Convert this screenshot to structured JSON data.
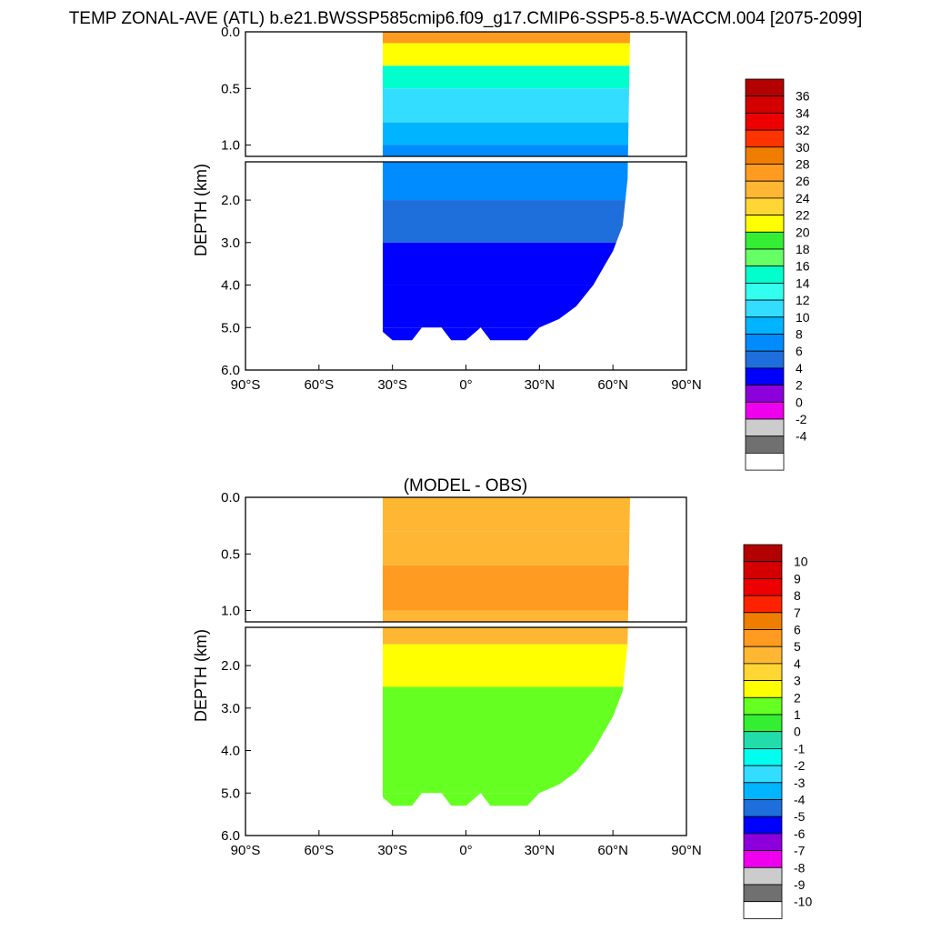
{
  "title": "TEMP ZONAL-AVE (ATL) b.e21.BWSSP585cmip6.f09_g17.CMIP6-SSP5-8.5-WACCM.004 [2075-2099]",
  "panel2_title": "(MODEL - OBS)",
  "chart_data": [
    {
      "type": "heatmap",
      "variable": "TEMP zonal average (Atlantic)",
      "ylabel": "DEPTH (km)",
      "xlabel": "",
      "x_ticks": [
        "90°S",
        "60°S",
        "30°S",
        "0°",
        "30°N",
        "60°N",
        "90°N"
      ],
      "x_tick_values": [
        -90,
        -60,
        -30,
        0,
        30,
        60,
        90
      ],
      "y_ticks_upper": [
        "0.0",
        "0.5",
        "1.0"
      ],
      "y_ticks_upper_values": [
        0.0,
        0.5,
        1.0
      ],
      "y_ticks_lower": [
        "2.0",
        "3.0",
        "4.0",
        "5.0",
        "6.0"
      ],
      "y_ticks_lower_values": [
        2.0,
        3.0,
        4.0,
        5.0,
        6.0
      ],
      "xlim": [
        -90,
        90
      ],
      "ylim_upper": [
        0.0,
        1.1
      ],
      "ylim_lower": [
        1.1,
        6.0
      ],
      "ocean_lat_range": [
        -34,
        67
      ],
      "colorbar": {
        "labels": [
          "36",
          "34",
          "32",
          "30",
          "28",
          "26",
          "24",
          "22",
          "20",
          "18",
          "16",
          "14",
          "12",
          "10",
          "8",
          "6",
          "4",
          "2",
          "0",
          "-2",
          "-4"
        ],
        "colors": [
          "#b30000",
          "#d40000",
          "#ee0000",
          "#ff3300",
          "#ee7d00",
          "#ff9b20",
          "#ffb733",
          "#ffd633",
          "#ffff00",
          "#33ee33",
          "#66ff66",
          "#00ffcc",
          "#33ffee",
          "#33ddff",
          "#00b4ff",
          "#008cff",
          "#1e6edc",
          "#0000ff",
          "#8c00dc",
          "#ee00ee",
          "#cccccc",
          "#707070",
          "#ffffff"
        ]
      },
      "profile": [
        {
          "depth": 0.0,
          "temp": 27
        },
        {
          "depth": 0.1,
          "temp": 21
        },
        {
          "depth": 0.3,
          "temp": 15
        },
        {
          "depth": 0.5,
          "temp": 11
        },
        {
          "depth": 0.8,
          "temp": 8
        },
        {
          "depth": 1.0,
          "temp": 7
        },
        {
          "depth": 2.0,
          "temp": 5
        },
        {
          "depth": 3.0,
          "temp": 3
        },
        {
          "depth": 4.0,
          "temp": 3
        },
        {
          "depth": 5.0,
          "temp": 3
        }
      ]
    },
    {
      "type": "heatmap",
      "variable": "TEMP difference (MODEL - OBS)",
      "title": "(MODEL - OBS)",
      "ylabel": "DEPTH (km)",
      "xlabel": "",
      "x_ticks": [
        "90°S",
        "60°S",
        "30°S",
        "0°",
        "30°N",
        "60°N",
        "90°N"
      ],
      "x_tick_values": [
        -90,
        -60,
        -30,
        0,
        30,
        60,
        90
      ],
      "y_ticks_upper": [
        "0.0",
        "0.5",
        "1.0"
      ],
      "y_ticks_upper_values": [
        0.0,
        0.5,
        1.0
      ],
      "y_ticks_lower": [
        "2.0",
        "3.0",
        "4.0",
        "5.0",
        "6.0"
      ],
      "y_ticks_lower_values": [
        2.0,
        3.0,
        4.0,
        5.0,
        6.0
      ],
      "xlim": [
        -90,
        90
      ],
      "ylim_upper": [
        0.0,
        1.1
      ],
      "ylim_lower": [
        1.1,
        6.0
      ],
      "ocean_lat_range": [
        -34,
        67
      ],
      "colorbar": {
        "labels": [
          "10",
          "9",
          "8",
          "7",
          "6",
          "5",
          "4",
          "3",
          "2",
          "1",
          "0",
          "-1",
          "-2",
          "-3",
          "-4",
          "-5",
          "-6",
          "-7",
          "-8",
          "-9",
          "-10"
        ],
        "colors": [
          "#b30000",
          "#d40000",
          "#ee0000",
          "#ff2200",
          "#ee7d00",
          "#ff9b20",
          "#ffb733",
          "#ffd633",
          "#ffff00",
          "#66ff22",
          "#33ee33",
          "#22ddaa",
          "#00ffee",
          "#33ddff",
          "#00b4ff",
          "#1e6edc",
          "#0000ff",
          "#8c00dc",
          "#ee00ee",
          "#cccccc",
          "#707070",
          "#ffffff"
        ]
      },
      "profile": [
        {
          "depth": 0.0,
          "diff": 4
        },
        {
          "depth": 0.3,
          "diff": 4
        },
        {
          "depth": 0.6,
          "diff": 5
        },
        {
          "depth": 1.0,
          "diff": 4
        },
        {
          "depth": 1.5,
          "diff": 2
        },
        {
          "depth": 2.5,
          "diff": 1
        },
        {
          "depth": 4.0,
          "diff": 1
        },
        {
          "depth": 5.0,
          "diff": 1
        }
      ]
    }
  ]
}
